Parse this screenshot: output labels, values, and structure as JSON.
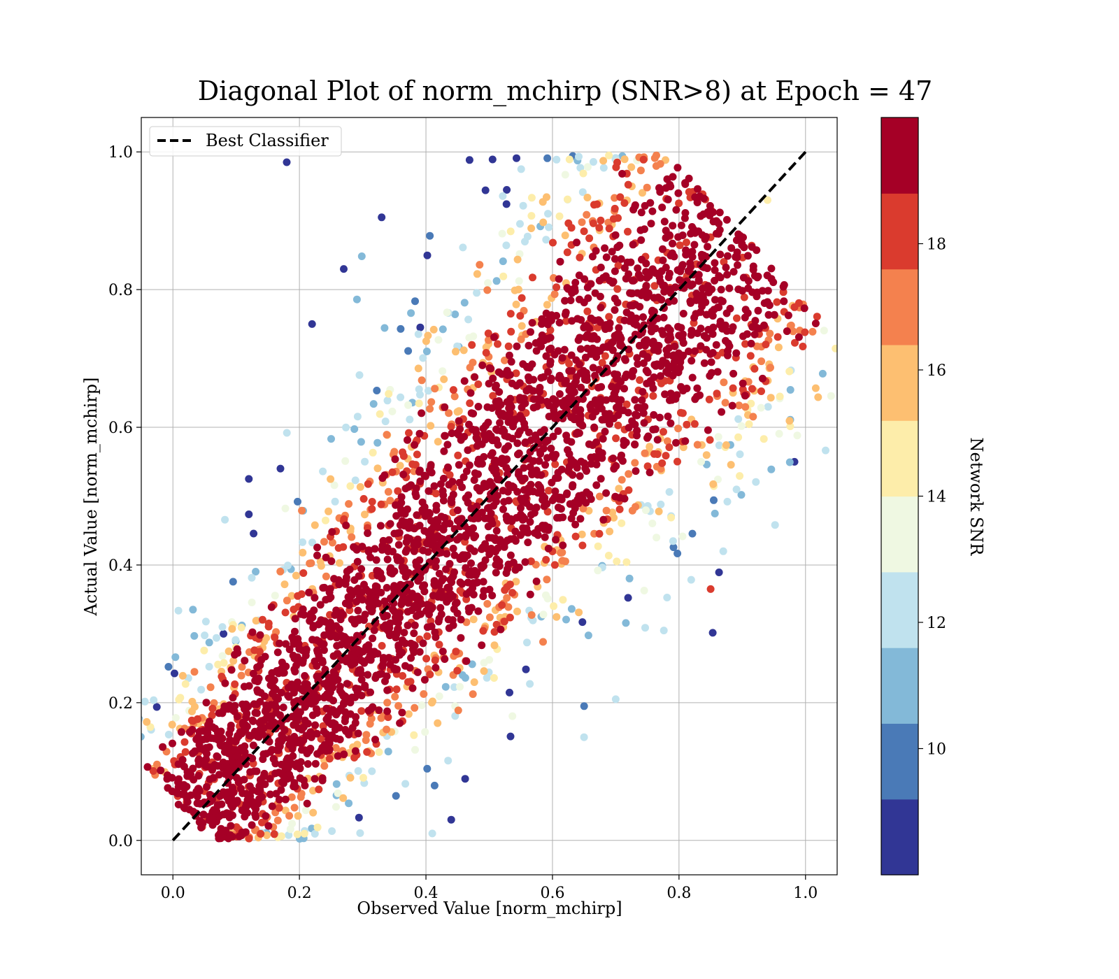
{
  "chart_data": {
    "type": "scatter",
    "title": "Diagonal Plot of norm_mchirp (SNR>8) at Epoch = 47",
    "xlabel": "Observed Value [norm_mchirp]",
    "ylabel": "Actual Value [norm_mchirp]",
    "xlim": [
      -0.05,
      1.05
    ],
    "ylim": [
      -0.05,
      1.05
    ],
    "xticks": [
      "0.0",
      "0.2",
      "0.4",
      "0.6",
      "0.8",
      "1.0"
    ],
    "yticks": [
      "0.0",
      "0.2",
      "0.4",
      "0.6",
      "0.8",
      "1.0"
    ],
    "grid": true,
    "legend": {
      "position": "top-left",
      "entries": [
        "Best Classifier"
      ]
    },
    "reference_line": {
      "name": "Best Classifier",
      "x": [
        0.0,
        1.0
      ],
      "y": [
        0.0,
        1.0
      ],
      "style": "dashed",
      "color": "#000000"
    },
    "colorbar": {
      "label": "Network SNR",
      "range": [
        8,
        20
      ],
      "ticks": [
        "10",
        "12",
        "14",
        "16",
        "18"
      ],
      "tick_values": [
        10,
        12,
        14,
        16,
        18
      ],
      "colors": [
        "#313695",
        "#4a7ab7",
        "#83b9d8",
        "#c0e2ee",
        "#eff8e2",
        "#fdedaa",
        "#fdbf71",
        "#f4814e",
        "#da3b2e",
        "#a50026"
      ]
    },
    "sample_points": [
      {
        "x": 0.18,
        "y": 0.985,
        "snr": 8.5
      },
      {
        "x": 0.12,
        "y": 0.525,
        "snr": 9.0
      },
      {
        "x": 0.22,
        "y": 0.75,
        "snr": 8.6
      },
      {
        "x": 0.27,
        "y": 0.83,
        "snr": 8.8
      },
      {
        "x": 0.33,
        "y": 0.905,
        "snr": 8.7
      },
      {
        "x": 0.85,
        "y": 0.365,
        "snr": 18.5
      },
      {
        "x": 0.92,
        "y": 0.82,
        "snr": 19.0
      },
      {
        "x": 0.08,
        "y": 0.3,
        "snr": 8.9
      },
      {
        "x": 0.44,
        "y": 0.03,
        "snr": 8.5
      },
      {
        "x": 0.41,
        "y": 0.01,
        "snr": 12.0
      },
      {
        "x": 0.65,
        "y": 0.195,
        "snr": 9.5
      },
      {
        "x": 0.7,
        "y": 0.205,
        "snr": 12.5
      },
      {
        "x": 0.87,
        "y": 0.42,
        "snr": 12.0
      },
      {
        "x": 0.17,
        "y": 0.54,
        "snr": 8.6
      },
      {
        "x": 0.94,
        "y": 0.93,
        "snr": 14.5
      }
    ]
  }
}
